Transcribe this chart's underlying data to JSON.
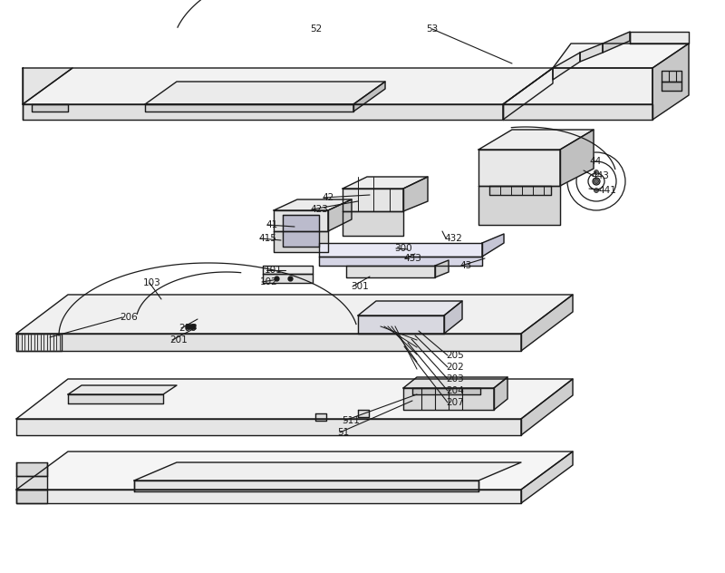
{
  "bg_color": "#ffffff",
  "line_color": "#1a1a1a",
  "line_width": 1.0,
  "fig_width": 8.0,
  "fig_height": 6.32,
  "dpi": 100
}
